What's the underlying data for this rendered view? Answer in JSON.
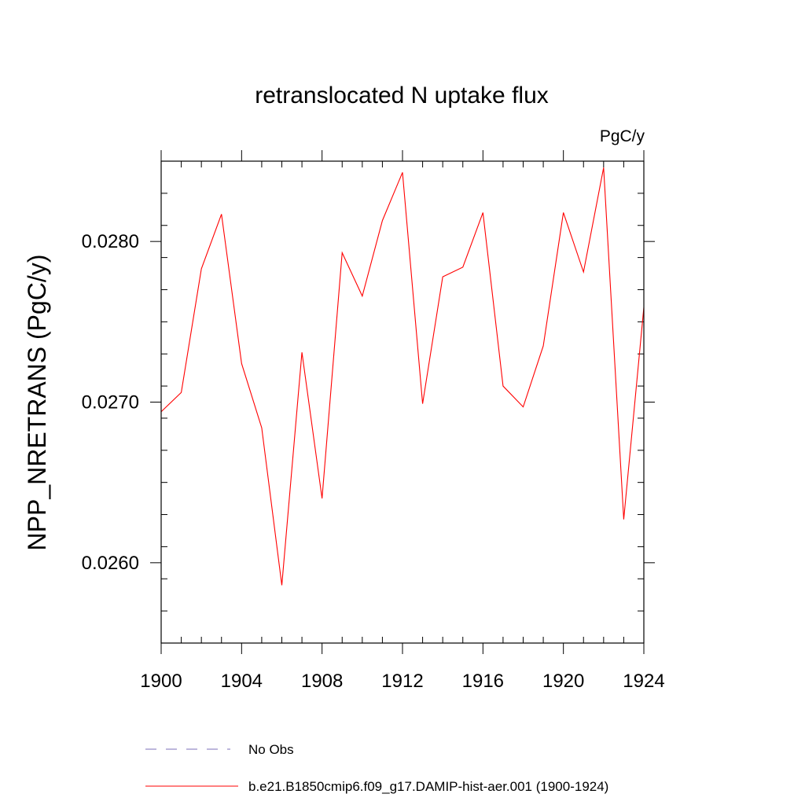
{
  "chart_data": {
    "type": "line",
    "title": "retranslocated N uptake flux",
    "units": "PgC/y",
    "xlabel": "",
    "ylabel": "NPP_NRETRANS  (PgC/y)",
    "xlim": [
      1900,
      1924
    ],
    "ylim": [
      0.0255,
      0.0285
    ],
    "x_ticks": [
      1900,
      1904,
      1908,
      1912,
      1916,
      1920,
      1924
    ],
    "x_tick_labels": [
      "1900",
      "1904",
      "1908",
      "1912",
      "1916",
      "1920",
      "1924"
    ],
    "x_minor_step": 1,
    "y_ticks": [
      0.026,
      0.027,
      0.028
    ],
    "y_tick_labels": [
      "0.0260",
      "0.0270",
      "0.0280"
    ],
    "y_minor_step": 0.0002,
    "grid": false,
    "legend_position": "bottom",
    "series": [
      {
        "name": "b.e21.B1850cmip6.f09_g17.DAMIP-hist-aer.001 (1900-1924)",
        "color": "#ff0000",
        "style": "solid",
        "x": [
          1900,
          1901,
          1902,
          1903,
          1904,
          1905,
          1906,
          1907,
          1908,
          1909,
          1910,
          1911,
          1912,
          1913,
          1914,
          1915,
          1916,
          1917,
          1918,
          1919,
          1920,
          1921,
          1922,
          1923,
          1924
        ],
        "values": [
          0.02694,
          0.02706,
          0.02783,
          0.02817,
          0.02724,
          0.02684,
          0.02586,
          0.02731,
          0.0264,
          0.02793,
          0.02766,
          0.02813,
          0.02843,
          0.02699,
          0.02778,
          0.02784,
          0.02818,
          0.0271,
          0.02697,
          0.02735,
          0.02818,
          0.02781,
          0.02846,
          0.02627,
          0.02759
        ]
      },
      {
        "name": "No Obs",
        "color": "#7b6fb8",
        "style": "dashed",
        "x": [],
        "values": []
      }
    ]
  }
}
